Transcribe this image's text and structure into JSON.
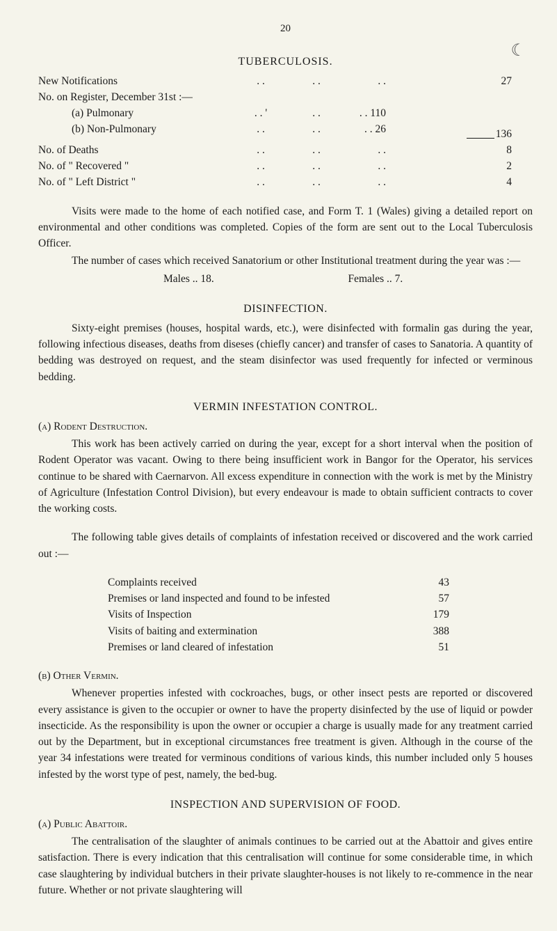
{
  "moon_mark": "☾",
  "page_number": "20",
  "tuberculosis": {
    "title": "TUBERCULOSIS.",
    "new_notifications_label": "New Notifications",
    "new_notifications_value": "27",
    "on_register_label": "No. on Register, December 31st :—",
    "pulmonary_label": "(a) Pulmonary",
    "pulmonary_value": "110",
    "nonpulmonary_label": "(b) Non-Pulmonary",
    "nonpulmonary_value": "26",
    "subtotal": "136",
    "deaths_label": "No. of Deaths",
    "deaths_value": "8",
    "recovered_label": "No. of \" Recovered \"",
    "recovered_value": "2",
    "left_district_label": "No. of \" Left District \"",
    "left_district_value": "4",
    "para1": "Visits were made to the home of each notified case, and Form T. 1 (Wales) giving a detailed report on environmental and other conditions was completed. Copies of the form are sent out to the Local Tuberculosis Officer.",
    "para2": "The number of cases which received Sanatorium or other Institutional treatment during the year was :—",
    "males_label": "Males  ..  18.",
    "females_label": "Females  ..  7."
  },
  "disinfection": {
    "title": "DISINFECTION.",
    "para": "Sixty-eight premises (houses, hospital wards, etc.), were disinfected with formalin gas during the year, following infectious diseases, deaths from diseses (chiefly cancer) and transfer of cases to Sanatoria. A quantity of bedding was destroyed on request, and the steam disinfector was used frequently for infected or verminous bedding."
  },
  "vermin": {
    "title": "VERMIN INFESTATION CONTROL.",
    "subsection_a": "(a) Rodent Destruction.",
    "para_a": "This work has been actively carried on during the year, except for a short interval when the position of Rodent Operator was vacant. Owing to there being insufficient work in Bangor for the Operator, his services continue to be shared with Caernarvon. All excess expenditure in connection with the work is met by the Ministry of Agriculture (Infestation Control Division), but every endeavour is made to obtain sufficient contracts to cover the working costs.",
    "table_intro": "The following table gives details of complaints of infestation received or discovered and the work carried out :—",
    "complaints": [
      {
        "label": "Complaints received",
        "value": "43"
      },
      {
        "label": "Premises or land inspected and found to be infested",
        "value": "57"
      },
      {
        "label": "Visits of Inspection",
        "value": "179"
      },
      {
        "label": "Visits of baiting and extermination",
        "value": "388"
      },
      {
        "label": "Premises or land cleared of infestation",
        "value": "51"
      }
    ],
    "subsection_b": "(b) Other Vermin.",
    "para_b": "Whenever properties infested with cockroaches, bugs, or other insect pests are reported or discovered every assistance is given to the occupier or owner to have the property disinfected by the use of liquid or powder insecticide. As the responsibility is upon the owner or occupier a charge is usually made for any treatment carried out by the Department, but in exceptional circumstances free treatment is given. Although in the course of the year 34 infestations were treated for verminous conditions of various kinds, this number included only 5 houses infested by the worst type of pest, namely, the bed-bug."
  },
  "food": {
    "title": "INSPECTION AND SUPERVISION OF FOOD.",
    "subsection_a": "(a) Public Abattoir.",
    "para": "The centralisation of the slaughter of animals continues to be carried out at the Abattoir and gives entire satisfaction. There is every indication that this centralisation will continue for some considerable time, in which case slaughtering by individual butchers in their private slaughter-houses is not likely to re-commence in the near future. Whether or not private slaughtering will"
  }
}
